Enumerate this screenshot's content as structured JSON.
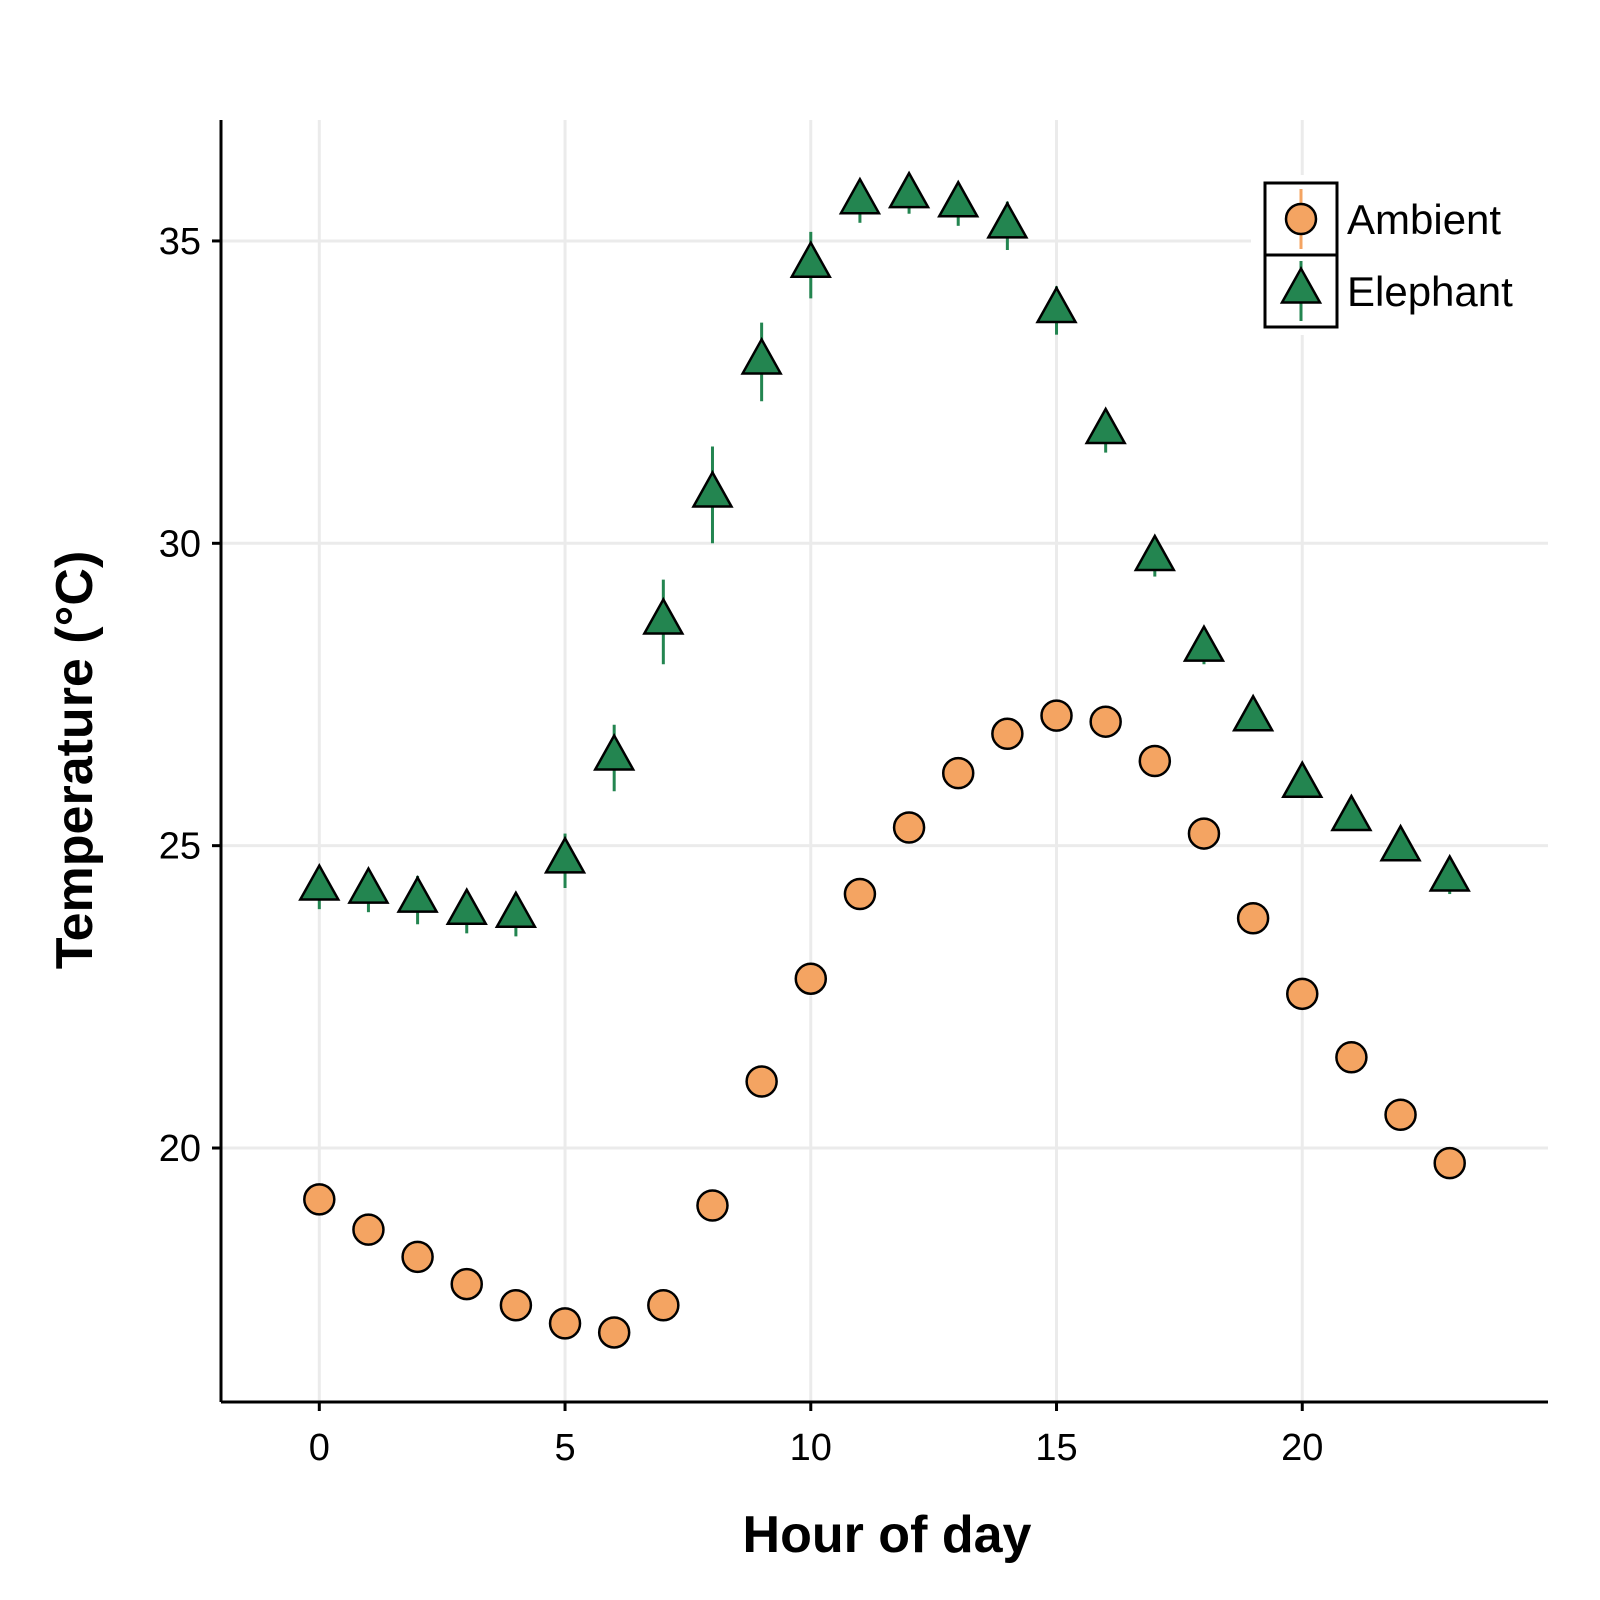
{
  "chart_data": {
    "type": "scatter",
    "title": "",
    "xlabel": "Hour of day",
    "ylabel": "Temperature (°C)",
    "xlim": [
      -2,
      25
    ],
    "ylim": [
      15.8,
      37.0
    ],
    "xticks": [
      0,
      5,
      10,
      15,
      20
    ],
    "yticks": [
      20,
      25,
      30,
      35
    ],
    "grid": true,
    "legend_position": "top-right",
    "x": [
      0,
      1,
      2,
      3,
      4,
      5,
      6,
      7,
      8,
      9,
      10,
      11,
      12,
      13,
      14,
      15,
      16,
      17,
      18,
      19,
      20,
      21,
      22,
      23
    ],
    "series": [
      {
        "name": "Ambient",
        "marker": "circle",
        "fill": "#F4A462",
        "errorbar_color": "#F4A462",
        "values": [
          19.15,
          18.65,
          18.2,
          17.75,
          17.4,
          17.1,
          16.95,
          17.4,
          19.05,
          21.1,
          22.8,
          24.2,
          25.3,
          26.2,
          26.85,
          27.15,
          27.05,
          26.4,
          25.2,
          23.8,
          22.55,
          21.5,
          20.55,
          19.75
        ],
        "errors": [
          0.1,
          0.1,
          0.1,
          0.1,
          0.1,
          0.1,
          0.1,
          0.1,
          0.1,
          0.1,
          0.1,
          0.1,
          0.1,
          0.1,
          0.1,
          0.1,
          0.1,
          0.1,
          0.1,
          0.1,
          0.1,
          0.1,
          0.1,
          0.1
        ]
      },
      {
        "name": "Elephant",
        "marker": "triangle",
        "fill": "#238550",
        "errorbar_color": "#238550",
        "values": [
          24.3,
          24.25,
          24.1,
          23.9,
          23.85,
          24.75,
          26.45,
          28.7,
          30.8,
          33.0,
          34.6,
          35.65,
          35.75,
          35.6,
          35.25,
          33.85,
          31.85,
          29.75,
          28.25,
          27.1,
          26.0,
          25.45,
          24.95,
          24.45
        ],
        "errors": [
          0.35,
          0.35,
          0.4,
          0.35,
          0.35,
          0.45,
          0.55,
          0.7,
          0.8,
          0.65,
          0.55,
          0.35,
          0.3,
          0.35,
          0.4,
          0.4,
          0.35,
          0.3,
          0.25,
          0.2,
          0.2,
          0.2,
          0.2,
          0.25
        ]
      }
    ]
  }
}
